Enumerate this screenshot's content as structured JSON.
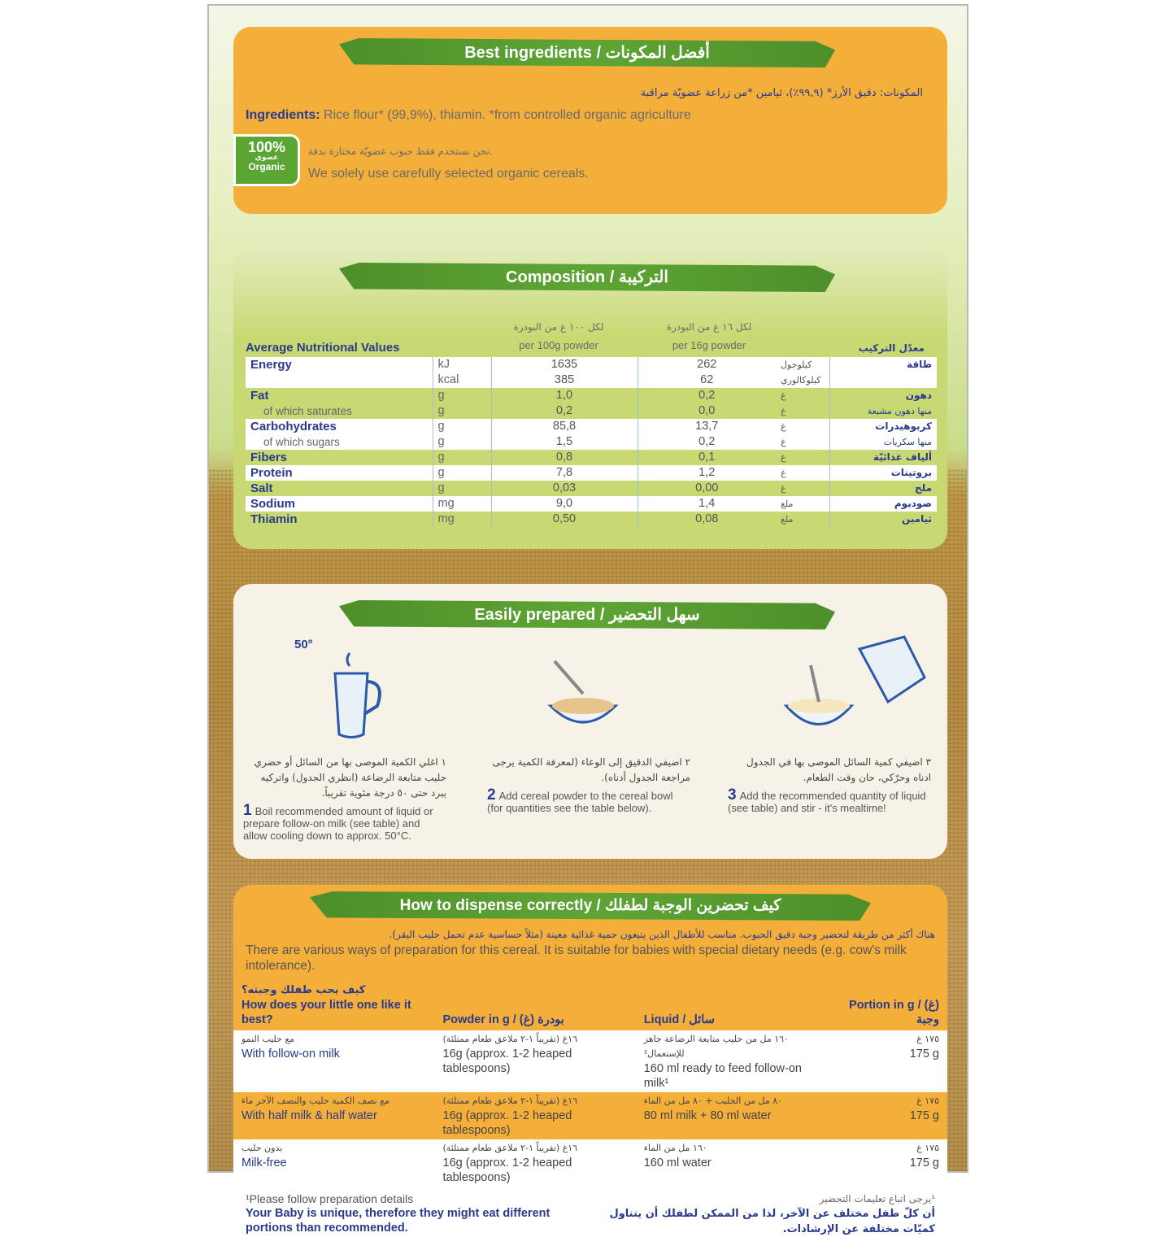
{
  "ingredients_panel": {
    "title": "Best ingredients / أفضل المكونات",
    "arabic_ingredients": "المكونات: دقيق الأرز* (٩٩,٩٪)، ثيامين *من زراعة عضويّة مراقبة",
    "label": "Ingredients:",
    "text": " Rice flour* (99,9%), thiamin. *from controlled organic agriculture",
    "badge": {
      "percent": "100%",
      "arabic": "عضوي",
      "english": "Organic"
    },
    "organic_ar": "نحن نستخدم فقط حبوب عضويّة مختارة بدقة.",
    "organic_en": "We solely use carefully selected organic cereals."
  },
  "composition": {
    "title": "Composition / التركيبة",
    "header_left": "Average Nutritional Values",
    "header_right": "معدّل التركيب",
    "col100_ar": "لكل ١٠٠ غ من البودرة",
    "col100_en": "per 100g powder",
    "col16_ar": "لكل ١٦ غ من البودرة",
    "col16_en": "per 16g powder",
    "rows": [
      {
        "name": "Energy",
        "sub": "",
        "unit": "kJ",
        "unit2": "kcal",
        "v100": "1635",
        "v100b": "385",
        "v16": "262",
        "v16b": "62",
        "unit_ar": "كيلوجول",
        "unit_ar2": "كيلوكالوري",
        "name_ar": "طاقة",
        "sub_ar": ""
      },
      {
        "name": "Fat",
        "sub": "of which saturates",
        "unit": "g",
        "unit2": "g",
        "v100": "1,0",
        "v100b": "0,2",
        "v16": "0,2",
        "v16b": "0,0",
        "unit_ar": "غ",
        "unit_ar2": "غ",
        "name_ar": "دهون",
        "sub_ar": "منها دهون مشبعة"
      },
      {
        "name": "Carbohydrates",
        "sub": "of which sugars",
        "unit": "g",
        "unit2": "g",
        "v100": "85,8",
        "v100b": "1,5",
        "v16": "13,7",
        "v16b": "0,2",
        "unit_ar": "غ",
        "unit_ar2": "غ",
        "name_ar": "كربوهيدرات",
        "sub_ar": "منها سكريات"
      },
      {
        "name": "Fibers",
        "unit": "g",
        "v100": "0,8",
        "v16": "0,1",
        "unit_ar": "غ",
        "name_ar": "ألياف غذائيّة"
      },
      {
        "name": "Protein",
        "unit": "g",
        "v100": "7,8",
        "v16": "1,2",
        "unit_ar": "غ",
        "name_ar": "بروتينات"
      },
      {
        "name": "Salt",
        "unit": "g",
        "v100": "0,03",
        "v16": "0,00",
        "unit_ar": "غ",
        "name_ar": "ملح"
      },
      {
        "name": "Sodium",
        "unit": "mg",
        "v100": "9,0",
        "v16": "1,4",
        "unit_ar": "ملغ",
        "name_ar": "صوديوم"
      },
      {
        "name": "Thiamin",
        "unit": "mg",
        "v100": "0,50",
        "v16": "0,08",
        "unit_ar": "ملغ",
        "name_ar": "ثيامين"
      }
    ]
  },
  "preparation": {
    "title": "Easily prepared / سهل التحضير",
    "temp": "50°",
    "steps": [
      {
        "num": "1",
        "ar": "١ اغلي الكمية الموصى بها من السائل أو حضري حليب متابعة الرضاعة (انظري الجدول) واتركيه يبرد حتى ٥٠ درجة مئوية تقريباً.",
        "en": "Boil recommended amount of liquid or prepare follow-on milk (see table) and allow cooling down to approx. 50°C."
      },
      {
        "num": "2",
        "ar": "٢ اضيفي الدقيق إلى الوعاء (لمعرفة الكمية يرجى مراجعة الجدول أدناه).",
        "en": "Add cereal powder to the cereal bowl (for quantities see the table below)."
      },
      {
        "num": "3",
        "ar": "٣ اضيفي كمية السائل الموصى بها في الجدول ادناه وحرّكي، حان وقت الطعام.",
        "en": "Add the recommended quantity of liquid (see table) and stir - it's mealtime!"
      }
    ]
  },
  "dispense": {
    "title": "How to dispense correctly / كيف تحضرين الوجبة لطفلك",
    "intro_ar": "هناك أكثر من طريقة لتحضير وجبة دقيق الحبوب. مناسب للأطفال الذين يتبعون حمية غذائية معينة (مثلاً حساسية عدم تحمل حليب البقر).",
    "intro_en": "There are various ways of preparation for this cereal. It is suitable for babies with special dietary needs (e.g. cow's milk intolerance).",
    "headers": {
      "q_ar": "كيف يحب طفلك وجبته؟",
      "q_en": "How does your little one like it best?",
      "powder": "Powder in g / (غ) بودرة",
      "liquid": "Liquid / سائل",
      "portion": "Portion in g / (غ) وجبة"
    },
    "rows": [
      {
        "how_ar": "مع حليب النمو",
        "how_en": "With follow-on milk",
        "powder_ar": "١٦غ (تقريباً ١-٢ ملاعق طعام ممتلئة)",
        "powder_en": "16g (approx. 1-2 heaped tablespoons)",
        "liquid_ar": "١٦٠ مل من حليب متابعة الرضاعة جاهز للإستعمال¹",
        "liquid_en": "160 ml ready to feed follow-on milk¹",
        "portion_ar": "١٧٥ غ",
        "portion_en": "175 g"
      },
      {
        "how_ar": "مع نصف الكمية حليب والنصف الآخر ماء",
        "how_en": "With half milk & half water",
        "powder_ar": "١٦غ (تقريباً ١-٢ ملاعق طعام ممتلئة)",
        "powder_en": "16g (approx. 1-2 heaped tablespoons)",
        "liquid_ar": "٨٠ مل من الحليب + ٨٠ مل من الماء",
        "liquid_en": "80 ml milk + 80 ml water",
        "portion_ar": "١٧٥ غ",
        "portion_en": "175 g"
      },
      {
        "how_ar": "بدون حليب",
        "how_en": "Milk-free",
        "powder_ar": "١٦غ (تقريباً ١-٢ ملاعق طعام ممتلئة)",
        "powder_en": "16g (approx. 1-2 heaped tablespoons)",
        "liquid_ar": "١٦٠ مل من الماء",
        "liquid_en": "160 ml water",
        "portion_ar": "١٧٥ غ",
        "portion_en": "175 g"
      }
    ],
    "footnote_en": "¹Please follow preparation details",
    "footnote_ar": "¹يرجى اتباع تعليمات التحضير",
    "note_en": "Your Baby is unique, therefore they might eat different portions than recommended.",
    "note_ar": "أن كلّ طفل مختلف عن الآخر، لذا من الممكن لطفلك أن يتناول كميّات مختلفة عن الإرشادات."
  },
  "colors": {
    "orange": "#f4ae3a",
    "green_banner": "#5ea535",
    "panel_green": "#c8d973",
    "navy": "#2a3a8c"
  }
}
